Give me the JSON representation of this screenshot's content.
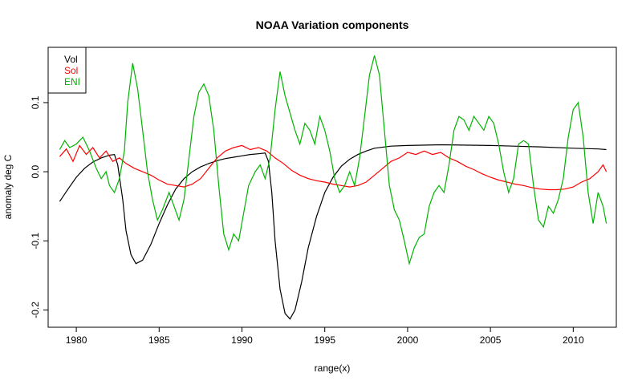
{
  "chart_data": {
    "type": "line",
    "title": "NOAA Variation components",
    "xlabel": "range(x)",
    "ylabel": "anomaly deg C",
    "xlim": [
      1978.3,
      2012.6
    ],
    "ylim": [
      -0.225,
      0.18
    ],
    "x_ticks": [
      1980,
      1985,
      1990,
      1995,
      2000,
      2005,
      2010
    ],
    "y_ticks": [
      -0.2,
      -0.1,
      0.0,
      0.1
    ],
    "y_tick_labels": [
      "-0.2",
      "-0.1",
      "0.0",
      "0.1"
    ],
    "legend_position": "top-left",
    "grid": false,
    "series": [
      {
        "name": "Vol",
        "color": "#000000",
        "points": [
          [
            1979.0,
            -0.043
          ],
          [
            1979.5,
            -0.025
          ],
          [
            1980.0,
            -0.008
          ],
          [
            1980.5,
            0.005
          ],
          [
            1981.0,
            0.014
          ],
          [
            1981.5,
            0.02
          ],
          [
            1982.0,
            0.024
          ],
          [
            1982.3,
            0.025
          ],
          [
            1982.5,
            0.01
          ],
          [
            1982.8,
            -0.04
          ],
          [
            1983.0,
            -0.085
          ],
          [
            1983.3,
            -0.12
          ],
          [
            1983.6,
            -0.133
          ],
          [
            1984.0,
            -0.128
          ],
          [
            1984.5,
            -0.105
          ],
          [
            1985.0,
            -0.075
          ],
          [
            1985.5,
            -0.048
          ],
          [
            1986.0,
            -0.025
          ],
          [
            1986.5,
            -0.01
          ],
          [
            1987.0,
            0.0
          ],
          [
            1987.5,
            0.007
          ],
          [
            1988.0,
            0.012
          ],
          [
            1988.5,
            0.016
          ],
          [
            1989.0,
            0.019
          ],
          [
            1989.5,
            0.021
          ],
          [
            1990.0,
            0.023
          ],
          [
            1990.5,
            0.025
          ],
          [
            1991.0,
            0.026
          ],
          [
            1991.4,
            0.027
          ],
          [
            1991.6,
            0.015
          ],
          [
            1991.8,
            -0.03
          ],
          [
            1992.0,
            -0.1
          ],
          [
            1992.3,
            -0.17
          ],
          [
            1992.6,
            -0.205
          ],
          [
            1992.9,
            -0.213
          ],
          [
            1993.2,
            -0.2
          ],
          [
            1993.6,
            -0.16
          ],
          [
            1994.0,
            -0.11
          ],
          [
            1994.5,
            -0.065
          ],
          [
            1995.0,
            -0.03
          ],
          [
            1995.5,
            -0.008
          ],
          [
            1996.0,
            0.008
          ],
          [
            1996.5,
            0.018
          ],
          [
            1997.0,
            0.025
          ],
          [
            1997.5,
            0.03
          ],
          [
            1998.0,
            0.034
          ],
          [
            1999.0,
            0.037
          ],
          [
            2000.0,
            0.038
          ],
          [
            2002.0,
            0.039
          ],
          [
            2005.0,
            0.038
          ],
          [
            2008.0,
            0.036
          ],
          [
            2010.0,
            0.034
          ],
          [
            2011.5,
            0.033
          ],
          [
            2012.0,
            0.032
          ]
        ]
      },
      {
        "name": "Sol",
        "color": "#ff0000",
        "points": [
          [
            1979.0,
            0.022
          ],
          [
            1979.4,
            0.033
          ],
          [
            1979.8,
            0.015
          ],
          [
            1980.2,
            0.038
          ],
          [
            1980.6,
            0.025
          ],
          [
            1981.0,
            0.035
          ],
          [
            1981.4,
            0.02
          ],
          [
            1981.8,
            0.03
          ],
          [
            1982.2,
            0.015
          ],
          [
            1982.6,
            0.02
          ],
          [
            1983.0,
            0.012
          ],
          [
            1983.5,
            0.005
          ],
          [
            1984.0,
            0.0
          ],
          [
            1984.5,
            -0.005
          ],
          [
            1985.0,
            -0.012
          ],
          [
            1985.5,
            -0.018
          ],
          [
            1986.0,
            -0.02
          ],
          [
            1986.5,
            -0.022
          ],
          [
            1987.0,
            -0.018
          ],
          [
            1987.5,
            -0.01
          ],
          [
            1988.0,
            0.005
          ],
          [
            1988.5,
            0.02
          ],
          [
            1989.0,
            0.03
          ],
          [
            1989.5,
            0.035
          ],
          [
            1990.0,
            0.038
          ],
          [
            1990.5,
            0.032
          ],
          [
            1991.0,
            0.035
          ],
          [
            1991.5,
            0.03
          ],
          [
            1992.0,
            0.02
          ],
          [
            1992.5,
            0.012
          ],
          [
            1993.0,
            0.002
          ],
          [
            1993.5,
            -0.005
          ],
          [
            1994.0,
            -0.01
          ],
          [
            1994.5,
            -0.013
          ],
          [
            1995.0,
            -0.015
          ],
          [
            1995.5,
            -0.018
          ],
          [
            1996.0,
            -0.02
          ],
          [
            1996.5,
            -0.022
          ],
          [
            1997.0,
            -0.02
          ],
          [
            1997.5,
            -0.015
          ],
          [
            1998.0,
            -0.005
          ],
          [
            1998.5,
            0.005
          ],
          [
            1999.0,
            0.015
          ],
          [
            1999.5,
            0.02
          ],
          [
            2000.0,
            0.028
          ],
          [
            2000.5,
            0.025
          ],
          [
            2001.0,
            0.03
          ],
          [
            2001.5,
            0.025
          ],
          [
            2002.0,
            0.028
          ],
          [
            2002.5,
            0.02
          ],
          [
            2003.0,
            0.015
          ],
          [
            2003.5,
            0.008
          ],
          [
            2004.0,
            0.003
          ],
          [
            2004.5,
            -0.003
          ],
          [
            2005.0,
            -0.008
          ],
          [
            2005.5,
            -0.012
          ],
          [
            2006.0,
            -0.015
          ],
          [
            2006.5,
            -0.018
          ],
          [
            2007.0,
            -0.02
          ],
          [
            2007.5,
            -0.023
          ],
          [
            2008.0,
            -0.025
          ],
          [
            2008.5,
            -0.026
          ],
          [
            2009.0,
            -0.026
          ],
          [
            2009.5,
            -0.025
          ],
          [
            2010.0,
            -0.022
          ],
          [
            2010.5,
            -0.015
          ],
          [
            2011.0,
            -0.01
          ],
          [
            2011.5,
            0.0
          ],
          [
            2011.8,
            0.01
          ],
          [
            2012.0,
            0.0
          ]
        ]
      },
      {
        "name": "ENI",
        "color": "#00b300",
        "points": [
          [
            1979.0,
            0.032
          ],
          [
            1979.3,
            0.045
          ],
          [
            1979.6,
            0.035
          ],
          [
            1980.0,
            0.04
          ],
          [
            1980.4,
            0.05
          ],
          [
            1980.8,
            0.03
          ],
          [
            1981.2,
            0.005
          ],
          [
            1981.5,
            -0.01
          ],
          [
            1981.8,
            0.0
          ],
          [
            1982.0,
            -0.02
          ],
          [
            1982.3,
            -0.03
          ],
          [
            1982.6,
            -0.01
          ],
          [
            1982.9,
            0.03
          ],
          [
            1983.1,
            0.1
          ],
          [
            1983.4,
            0.157
          ],
          [
            1983.7,
            0.12
          ],
          [
            1984.0,
            0.06
          ],
          [
            1984.3,
            0.0
          ],
          [
            1984.6,
            -0.04
          ],
          [
            1984.9,
            -0.07
          ],
          [
            1985.2,
            -0.055
          ],
          [
            1985.6,
            -0.03
          ],
          [
            1985.9,
            -0.05
          ],
          [
            1986.2,
            -0.07
          ],
          [
            1986.5,
            -0.04
          ],
          [
            1986.8,
            0.02
          ],
          [
            1987.1,
            0.08
          ],
          [
            1987.4,
            0.115
          ],
          [
            1987.7,
            0.127
          ],
          [
            1988.0,
            0.11
          ],
          [
            1988.3,
            0.06
          ],
          [
            1988.6,
            -0.02
          ],
          [
            1988.9,
            -0.09
          ],
          [
            1989.2,
            -0.113
          ],
          [
            1989.5,
            -0.09
          ],
          [
            1989.8,
            -0.1
          ],
          [
            1990.1,
            -0.06
          ],
          [
            1990.4,
            -0.02
          ],
          [
            1990.8,
            0.0
          ],
          [
            1991.1,
            0.01
          ],
          [
            1991.4,
            -0.01
          ],
          [
            1991.7,
            0.02
          ],
          [
            1992.0,
            0.09
          ],
          [
            1992.3,
            0.145
          ],
          [
            1992.6,
            0.11
          ],
          [
            1992.9,
            0.085
          ],
          [
            1993.2,
            0.06
          ],
          [
            1993.5,
            0.04
          ],
          [
            1993.8,
            0.07
          ],
          [
            1994.1,
            0.06
          ],
          [
            1994.4,
            0.04
          ],
          [
            1994.7,
            0.08
          ],
          [
            1995.0,
            0.06
          ],
          [
            1995.3,
            0.03
          ],
          [
            1995.6,
            -0.01
          ],
          [
            1995.9,
            -0.03
          ],
          [
            1996.2,
            -0.02
          ],
          [
            1996.5,
            0.0
          ],
          [
            1996.8,
            -0.02
          ],
          [
            1997.1,
            0.02
          ],
          [
            1997.4,
            0.08
          ],
          [
            1997.7,
            0.14
          ],
          [
            1998.0,
            0.168
          ],
          [
            1998.3,
            0.14
          ],
          [
            1998.6,
            0.06
          ],
          [
            1998.9,
            -0.02
          ],
          [
            1999.2,
            -0.055
          ],
          [
            1999.5,
            -0.07
          ],
          [
            1999.8,
            -0.1
          ],
          [
            2000.1,
            -0.133
          ],
          [
            2000.4,
            -0.11
          ],
          [
            2000.7,
            -0.095
          ],
          [
            2001.0,
            -0.09
          ],
          [
            2001.3,
            -0.05
          ],
          [
            2001.6,
            -0.03
          ],
          [
            2001.9,
            -0.02
          ],
          [
            2002.2,
            -0.03
          ],
          [
            2002.5,
            0.01
          ],
          [
            2002.8,
            0.06
          ],
          [
            2003.1,
            0.08
          ],
          [
            2003.4,
            0.075
          ],
          [
            2003.7,
            0.06
          ],
          [
            2004.0,
            0.08
          ],
          [
            2004.3,
            0.07
          ],
          [
            2004.6,
            0.06
          ],
          [
            2004.9,
            0.08
          ],
          [
            2005.2,
            0.07
          ],
          [
            2005.5,
            0.04
          ],
          [
            2005.8,
            0.0
          ],
          [
            2006.1,
            -0.03
          ],
          [
            2006.4,
            -0.01
          ],
          [
            2006.7,
            0.04
          ],
          [
            2007.0,
            0.045
          ],
          [
            2007.3,
            0.04
          ],
          [
            2007.6,
            -0.02
          ],
          [
            2007.9,
            -0.07
          ],
          [
            2008.2,
            -0.08
          ],
          [
            2008.5,
            -0.05
          ],
          [
            2008.8,
            -0.06
          ],
          [
            2009.1,
            -0.04
          ],
          [
            2009.4,
            -0.01
          ],
          [
            2009.7,
            0.05
          ],
          [
            2010.0,
            0.09
          ],
          [
            2010.3,
            0.1
          ],
          [
            2010.6,
            0.05
          ],
          [
            2010.9,
            -0.03
          ],
          [
            2011.2,
            -0.075
          ],
          [
            2011.5,
            -0.03
          ],
          [
            2011.8,
            -0.05
          ],
          [
            2012.0,
            -0.075
          ]
        ]
      }
    ]
  }
}
